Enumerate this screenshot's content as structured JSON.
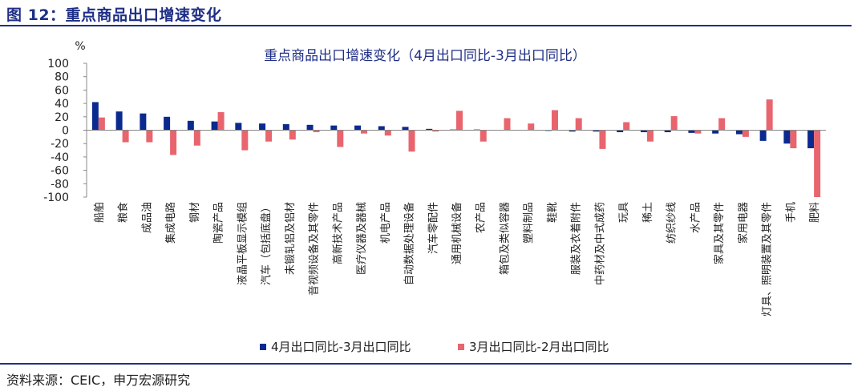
{
  "figure": {
    "title": "图 12：重点商品出口增速变化",
    "source": "资料来源：CEIC，申万宏源研究"
  },
  "colors": {
    "brand": "#1f2f86",
    "series1": "#0b2a8f",
    "series2": "#e8656e"
  },
  "chart_data": {
    "type": "bar",
    "title": "重点商品出口增速变化（4月出口同比-3月出口同比）",
    "ylabel": "%",
    "ylim": [
      -100,
      100
    ],
    "yticks": [
      100,
      80,
      60,
      40,
      20,
      0,
      -20,
      -40,
      -60,
      -80,
      -100
    ],
    "grid": false,
    "legend": "bottom",
    "categories": [
      "船舶",
      "粮食",
      "成品油",
      "集成电路",
      "钢材",
      "陶瓷产品",
      "液晶平板显示模组",
      "汽车（包括底盘）",
      "未锻轧铝及铝材",
      "音视频设备及其零件",
      "高新技术产品",
      "医疗仪器及器械",
      "机电产品",
      "自动数据处理设备",
      "汽车零配件",
      "通用机械设备",
      "农产品",
      "箱包及类似容器",
      "塑料制品",
      "鞋靴",
      "服装及衣着附件",
      "中药材及中式成药",
      "玩具",
      "稀土",
      "纺织纱线",
      "水产品",
      "家具及其零件",
      "家用电器",
      "灯具、照明装置及其零件",
      "手机",
      "肥料"
    ],
    "series": [
      {
        "name": "4月出口同比-3月出口同比",
        "values": [
          42,
          28,
          25,
          20,
          14,
          13,
          11,
          10,
          9,
          8,
          7,
          7,
          6,
          5,
          2,
          1,
          1,
          0,
          0,
          -1,
          -2,
          -2,
          -3,
          -3,
          -3,
          -4,
          -5,
          -6,
          -16,
          -20,
          -27
        ]
      },
      {
        "name": "3月出口同比-2月出口同比",
        "values": [
          19,
          -18,
          -18,
          -37,
          -23,
          27,
          -30,
          -17,
          -14,
          -3,
          -25,
          -5,
          -8,
          -32,
          -2,
          29,
          -17,
          18,
          10,
          30,
          18,
          -28,
          12,
          -17,
          21,
          -5,
          18,
          -10,
          46,
          -27,
          -100
        ]
      }
    ]
  }
}
